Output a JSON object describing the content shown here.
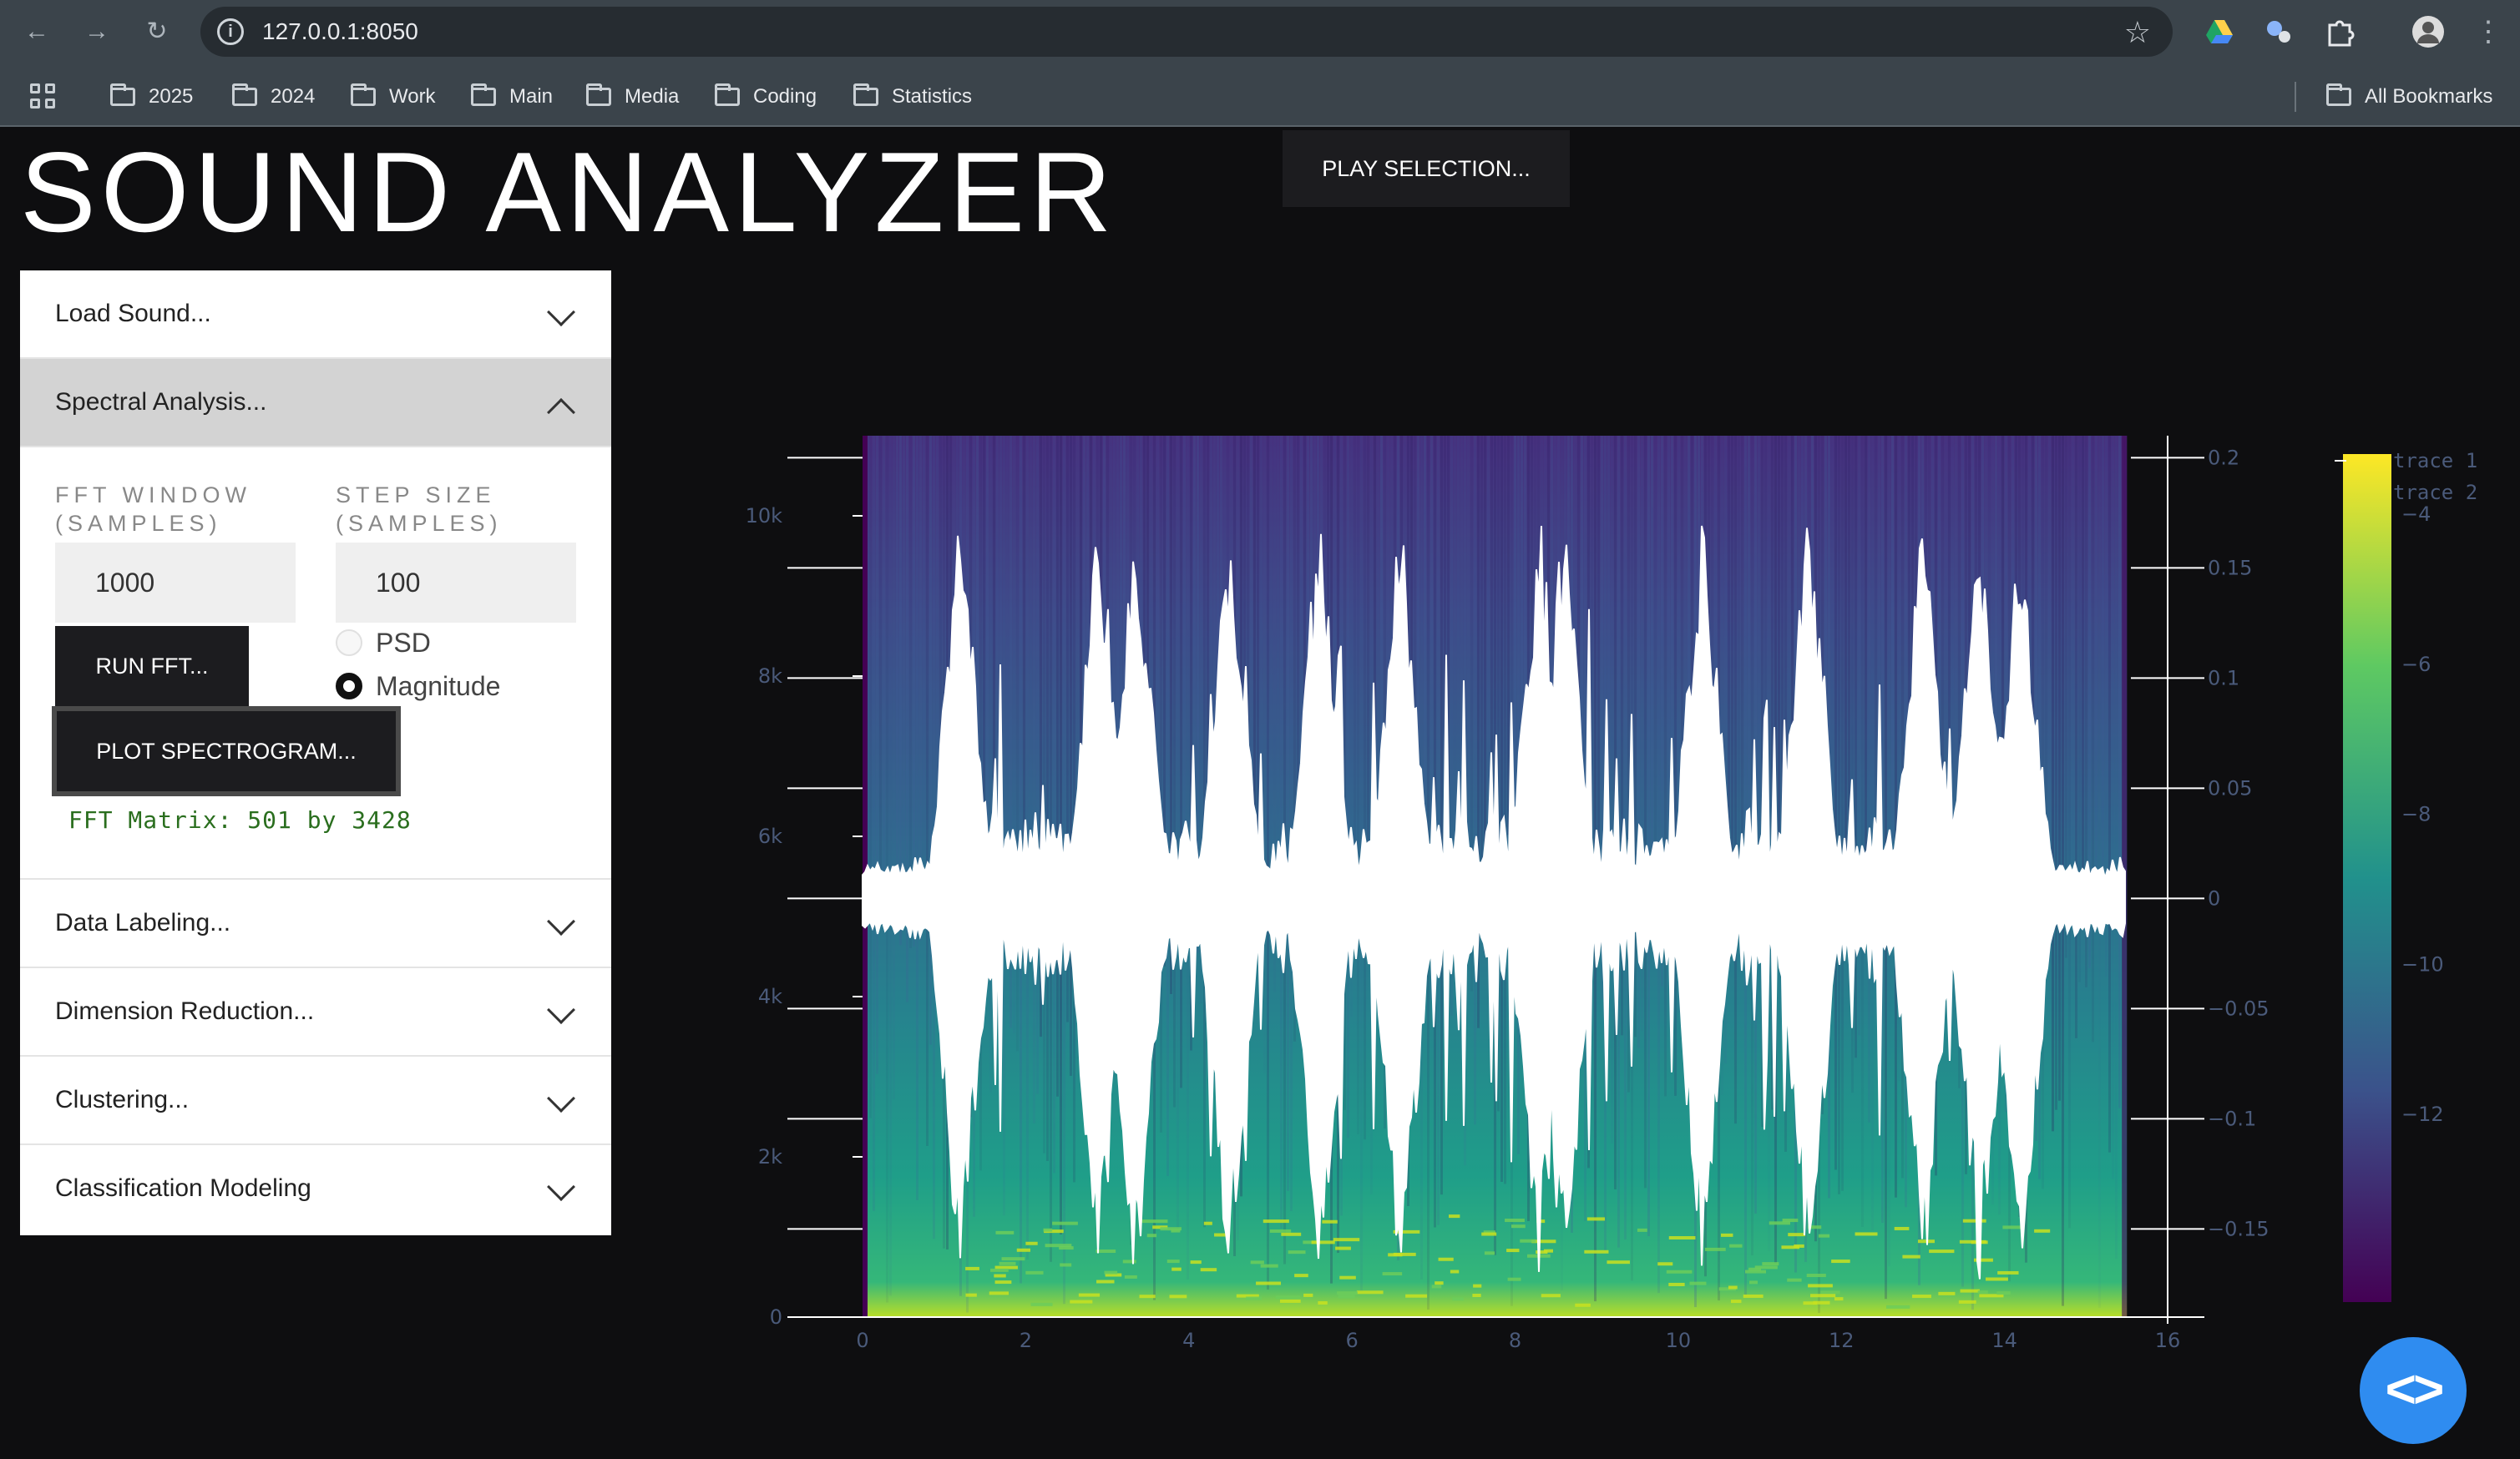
{
  "browser": {
    "url": "127.0.0.1:8050",
    "bookmarks": [
      "2025",
      "2024",
      "Work",
      "Main",
      "Media",
      "Coding",
      "Statistics"
    ],
    "all_bookmarks": "All Bookmarks"
  },
  "app": {
    "title": "SOUND ANALYZER",
    "play_button": "PLAY SELECTION..."
  },
  "sidebar": {
    "load_sound": "Load Sound...",
    "spectral": {
      "label": "Spectral Analysis...",
      "fft_window_label": "FFT WINDOW (SAMPLES)",
      "step_size_label": "STEP SIZE (SAMPLES)",
      "fft_window_value": "1000",
      "step_size_value": "100",
      "run_fft": "RUN FFT...",
      "psd_label": "PSD",
      "magnitude_label": "Magnitude",
      "selected_mode": "Magnitude",
      "plot_spectrogram": "PLOT SPECTROGRAM...",
      "fft_matrix": "FFT Matrix: 501 by 3428"
    },
    "data_labeling": "Data Labeling...",
    "dimension_reduction": "Dimension Reduction...",
    "clustering": "Clustering...",
    "classification": "Classification Modeling"
  },
  "chart_data": {
    "type": "heatmap",
    "title": "",
    "xlabel": "",
    "ylabel": "",
    "x_ticks": [
      "0",
      "2",
      "4",
      "6",
      "8",
      "10",
      "12",
      "14",
      "16"
    ],
    "xlim": [
      0,
      16
    ],
    "y_ticks": [
      "0",
      "2k",
      "4k",
      "6k",
      "8k",
      "10k"
    ],
    "ylim": [
      0,
      11000
    ],
    "y2_ticks": [
      "0.2",
      "0.15",
      "0.1",
      "0.05",
      "0",
      "−0.05",
      "−0.1",
      "−0.15"
    ],
    "y2lim": [
      -0.19,
      0.21
    ],
    "colorscale": "viridis",
    "colorbar_ticks": [
      "−4",
      "−6",
      "−8",
      "−10",
      "−12"
    ],
    "colorbar_range": [
      -14.5,
      -3.2
    ],
    "spectrogram_extent": {
      "x": [
        0,
        15.5
      ],
      "y": [
        0,
        11000
      ]
    },
    "legend": [
      "trace 1",
      "trace 2"
    ],
    "series": [
      {
        "name": "trace 1",
        "kind": "spectrogram heatmap"
      },
      {
        "name": "trace 2",
        "kind": "waveform",
        "color": "#ffffff",
        "baseline": 0,
        "spikes_x": [
          1.2,
          2.9,
          3.35,
          4.5,
          5.6,
          6.6,
          8.3,
          8.6,
          10.3,
          11.6,
          13.0,
          13.7,
          14.2
        ]
      }
    ]
  },
  "colors": {
    "background": "#0e0e10",
    "panel": "#ffffff",
    "button": "#1c1c1f",
    "accent_fab": "#2f8cf0",
    "info_text": "#2a6e1e"
  }
}
